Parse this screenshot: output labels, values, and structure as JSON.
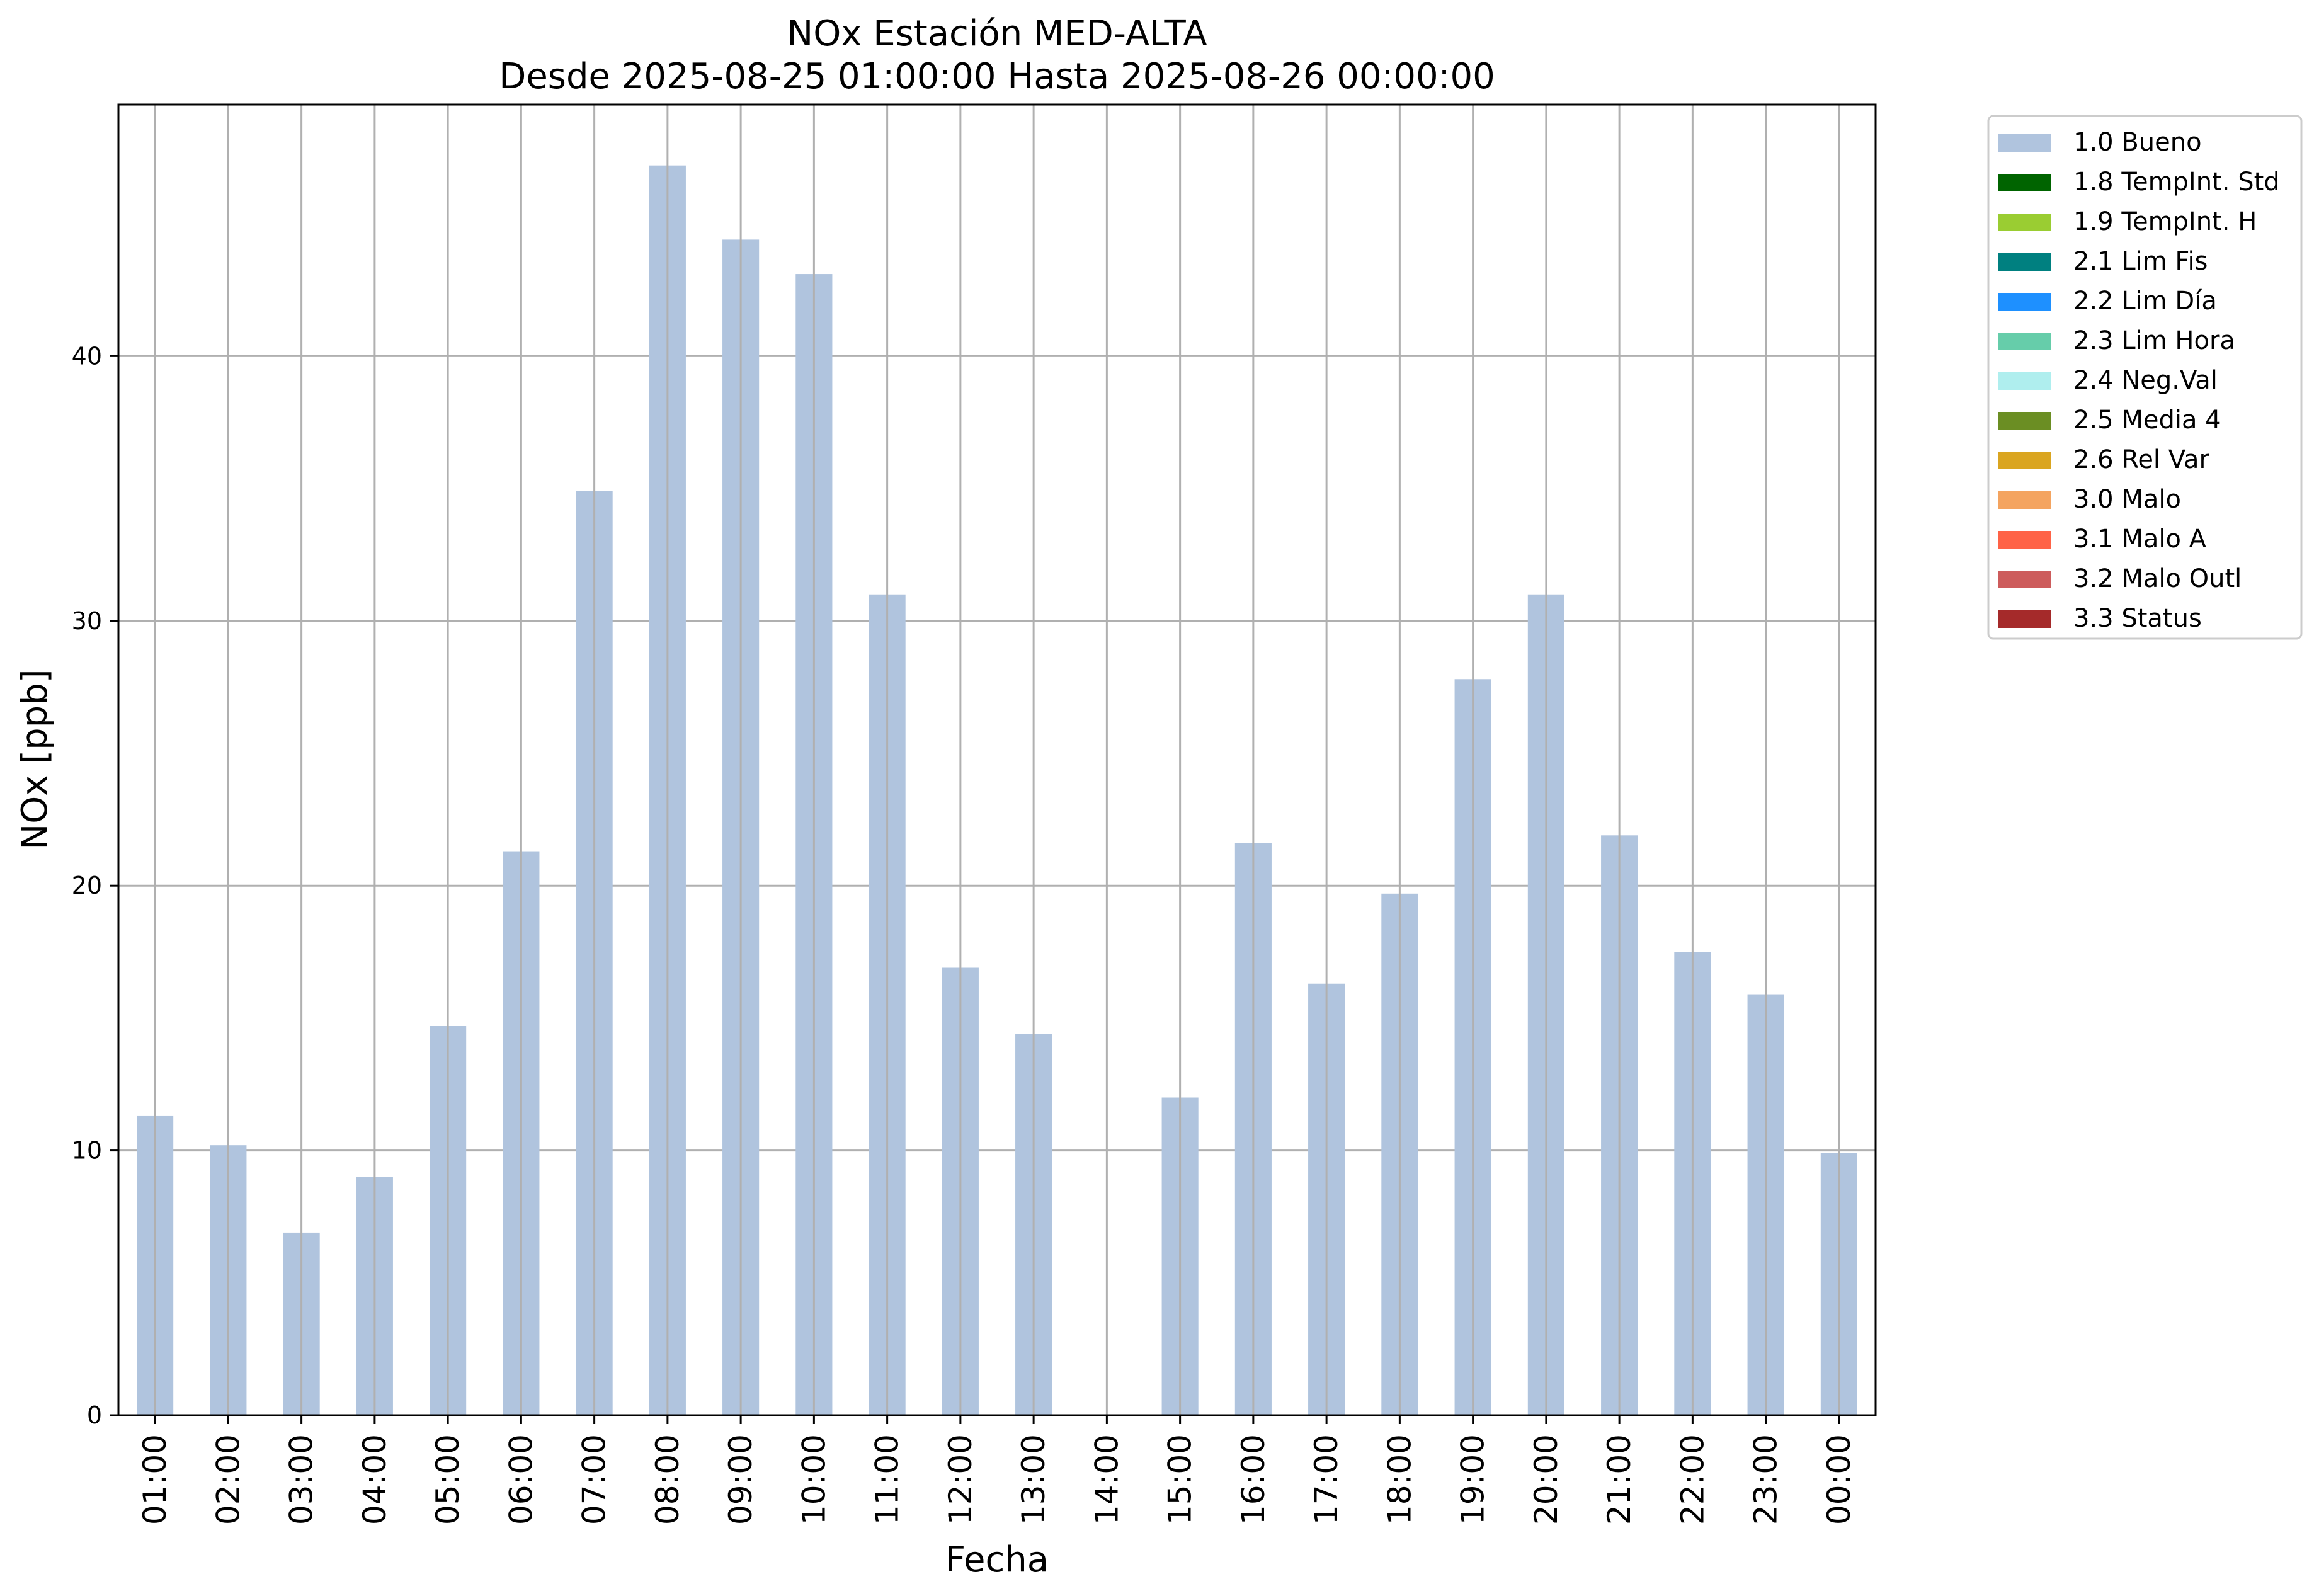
{
  "chart_data": {
    "type": "bar",
    "title": "NOx Estación MED-ALTA",
    "subtitle": "Desde 2025-08-25 01:00:00 Hasta 2025-08-26 00:00:00",
    "xlabel": "Fecha",
    "ylabel": "NOx [ppb]",
    "ylim": [
      0,
      49.5
    ],
    "yticks": [
      0,
      10,
      20,
      30,
      40
    ],
    "grid": true,
    "legend_position": "outside-upper-right",
    "categories": [
      "01:00",
      "02:00",
      "03:00",
      "04:00",
      "05:00",
      "06:00",
      "07:00",
      "08:00",
      "09:00",
      "10:00",
      "11:00",
      "12:00",
      "13:00",
      "14:00",
      "15:00",
      "16:00",
      "17:00",
      "18:00",
      "19:00",
      "20:00",
      "21:00",
      "22:00",
      "23:00",
      "00:00"
    ],
    "series": [
      {
        "name": "1.0 Bueno",
        "color": "#b0c4de",
        "values": [
          11.3,
          10.2,
          6.9,
          9.0,
          14.7,
          21.3,
          34.9,
          47.2,
          44.4,
          43.1,
          31.0,
          16.9,
          14.4,
          null,
          12.0,
          21.6,
          16.3,
          19.7,
          27.8,
          31.0,
          21.9,
          17.5,
          15.9,
          9.9
        ]
      }
    ],
    "legend": [
      {
        "label": "1.0 Bueno",
        "color": "#b0c4de"
      },
      {
        "label": "1.8 TempInt. Std",
        "color": "#006400"
      },
      {
        "label": "1.9 TempInt. H",
        "color": "#9acd32"
      },
      {
        "label": "2.1 Lim Fis",
        "color": "#008080"
      },
      {
        "label": "2.2 Lim Día",
        "color": "#1e90ff"
      },
      {
        "label": "2.3 Lim Hora",
        "color": "#66cdaa"
      },
      {
        "label": "2.4 Neg.Val",
        "color": "#afeeee"
      },
      {
        "label": "2.5 Media 4",
        "color": "#6b8e23"
      },
      {
        "label": "2.6 Rel Var",
        "color": "#daa520"
      },
      {
        "label": "3.0 Malo",
        "color": "#f4a460"
      },
      {
        "label": "3.1 Malo A",
        "color": "#ff6347"
      },
      {
        "label": "3.2 Malo Outl",
        "color": "#cd5c5c"
      },
      {
        "label": "3.3 Status",
        "color": "#a52a2a"
      }
    ]
  }
}
